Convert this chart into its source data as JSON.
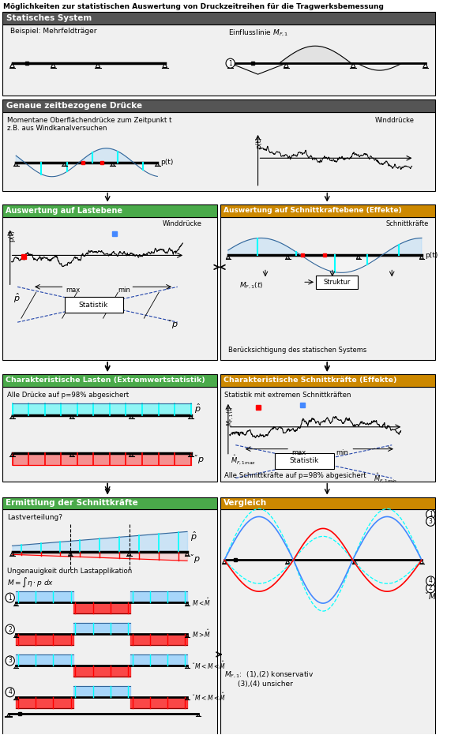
{
  "title": "Möglichkeiten zur statistischen Auswertung von Druckzeitreihen für die Tragwerksbemessung",
  "section1_header": "Statisches System",
  "section2_header": "Genaue zeitbezogene Drücke",
  "section3a_header": "Auswertung auf Lastebene",
  "section3b_header": "Auswertung auf Schnittkraftebene (Effekte)",
  "section4a_header": "Charakteristische Lasten (Extremwertstatistik)",
  "section4b_header": "Charakteristische Schnittkräfte (Effekte)",
  "section5a_header": "Ermittlung der Schnittkräfte",
  "section5b_header": "Vergleich",
  "col_dark": "#555555",
  "col_green": "#4aaa4a",
  "col_orange": "#cc8800",
  "col_light": "#e8e8e8",
  "col_white": "#ffffff"
}
